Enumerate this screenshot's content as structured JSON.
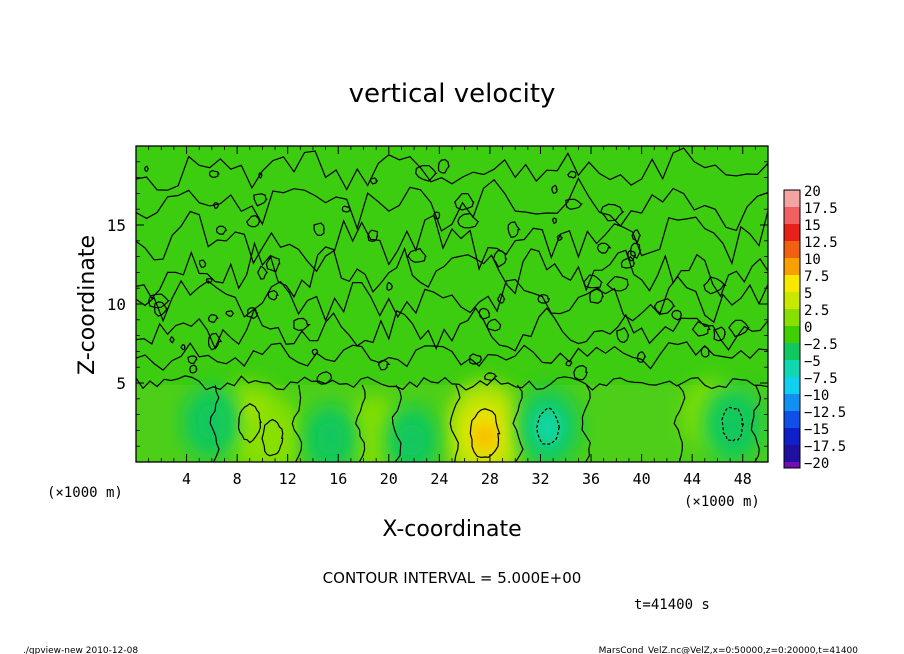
{
  "chart_data": {
    "type": "heatmap",
    "title": "vertical velocity",
    "xlabel": "X-coordinate",
    "ylabel": "Z-coordinate",
    "x_unit": "(×1000 m)",
    "y_unit": "(×1000 m)",
    "xlim": [
      0,
      50
    ],
    "ylim": [
      0,
      20
    ],
    "x_ticks": [
      4,
      8,
      12,
      16,
      20,
      24,
      28,
      32,
      36,
      40,
      44,
      48
    ],
    "y_ticks": [
      5,
      10,
      15
    ],
    "contour_interval_text": "CONTOUR INTERVAL = 5.000E+00",
    "time_text": "t=41400 s",
    "colorbar": {
      "labels": [
        "20",
        "17.5",
        "15",
        "12.5",
        "10",
        "7.5",
        "5",
        "2.5",
        "0",
        "−2.5",
        "−5",
        "−7.5",
        "−10",
        "−12.5",
        "−15",
        "−17.5",
        "−20"
      ],
      "colors": [
        "#f4a3a3",
        "#f06060",
        "#e8201a",
        "#f06010",
        "#f8a000",
        "#f8e800",
        "#c8e800",
        "#88e000",
        "#40d000",
        "#10c860",
        "#10d8b0",
        "#10d0f0",
        "#1090f0",
        "#1050e8",
        "#1020c8",
        "#2010a0",
        "#7010b0"
      ]
    },
    "blobs": [
      {
        "x": 9.0,
        "z": 2.5,
        "value": 5.5
      },
      {
        "x": 10.8,
        "z": 1.5,
        "value": 4.5
      },
      {
        "x": 18.8,
        "z": 1.8,
        "value": 4.0
      },
      {
        "x": 27.6,
        "z": 1.8,
        "value": 9.0
      },
      {
        "x": 45.6,
        "z": 3.0,
        "value": 3.5
      },
      {
        "x": 6.0,
        "z": 2.5,
        "value": -4.0
      },
      {
        "x": 15.4,
        "z": 1.5,
        "value": -3.0
      },
      {
        "x": 21.8,
        "z": 1.4,
        "value": -3.0
      },
      {
        "x": 32.6,
        "z": 2.2,
        "value": -5.0
      },
      {
        "x": 47.2,
        "z": 2.4,
        "value": -4.5
      }
    ]
  },
  "footer": {
    "left": "./gpview-new   2010-12-08",
    "right": "MarsCond_VelZ.nc@VelZ,x=0:50000,z=0:20000,t=41400"
  }
}
